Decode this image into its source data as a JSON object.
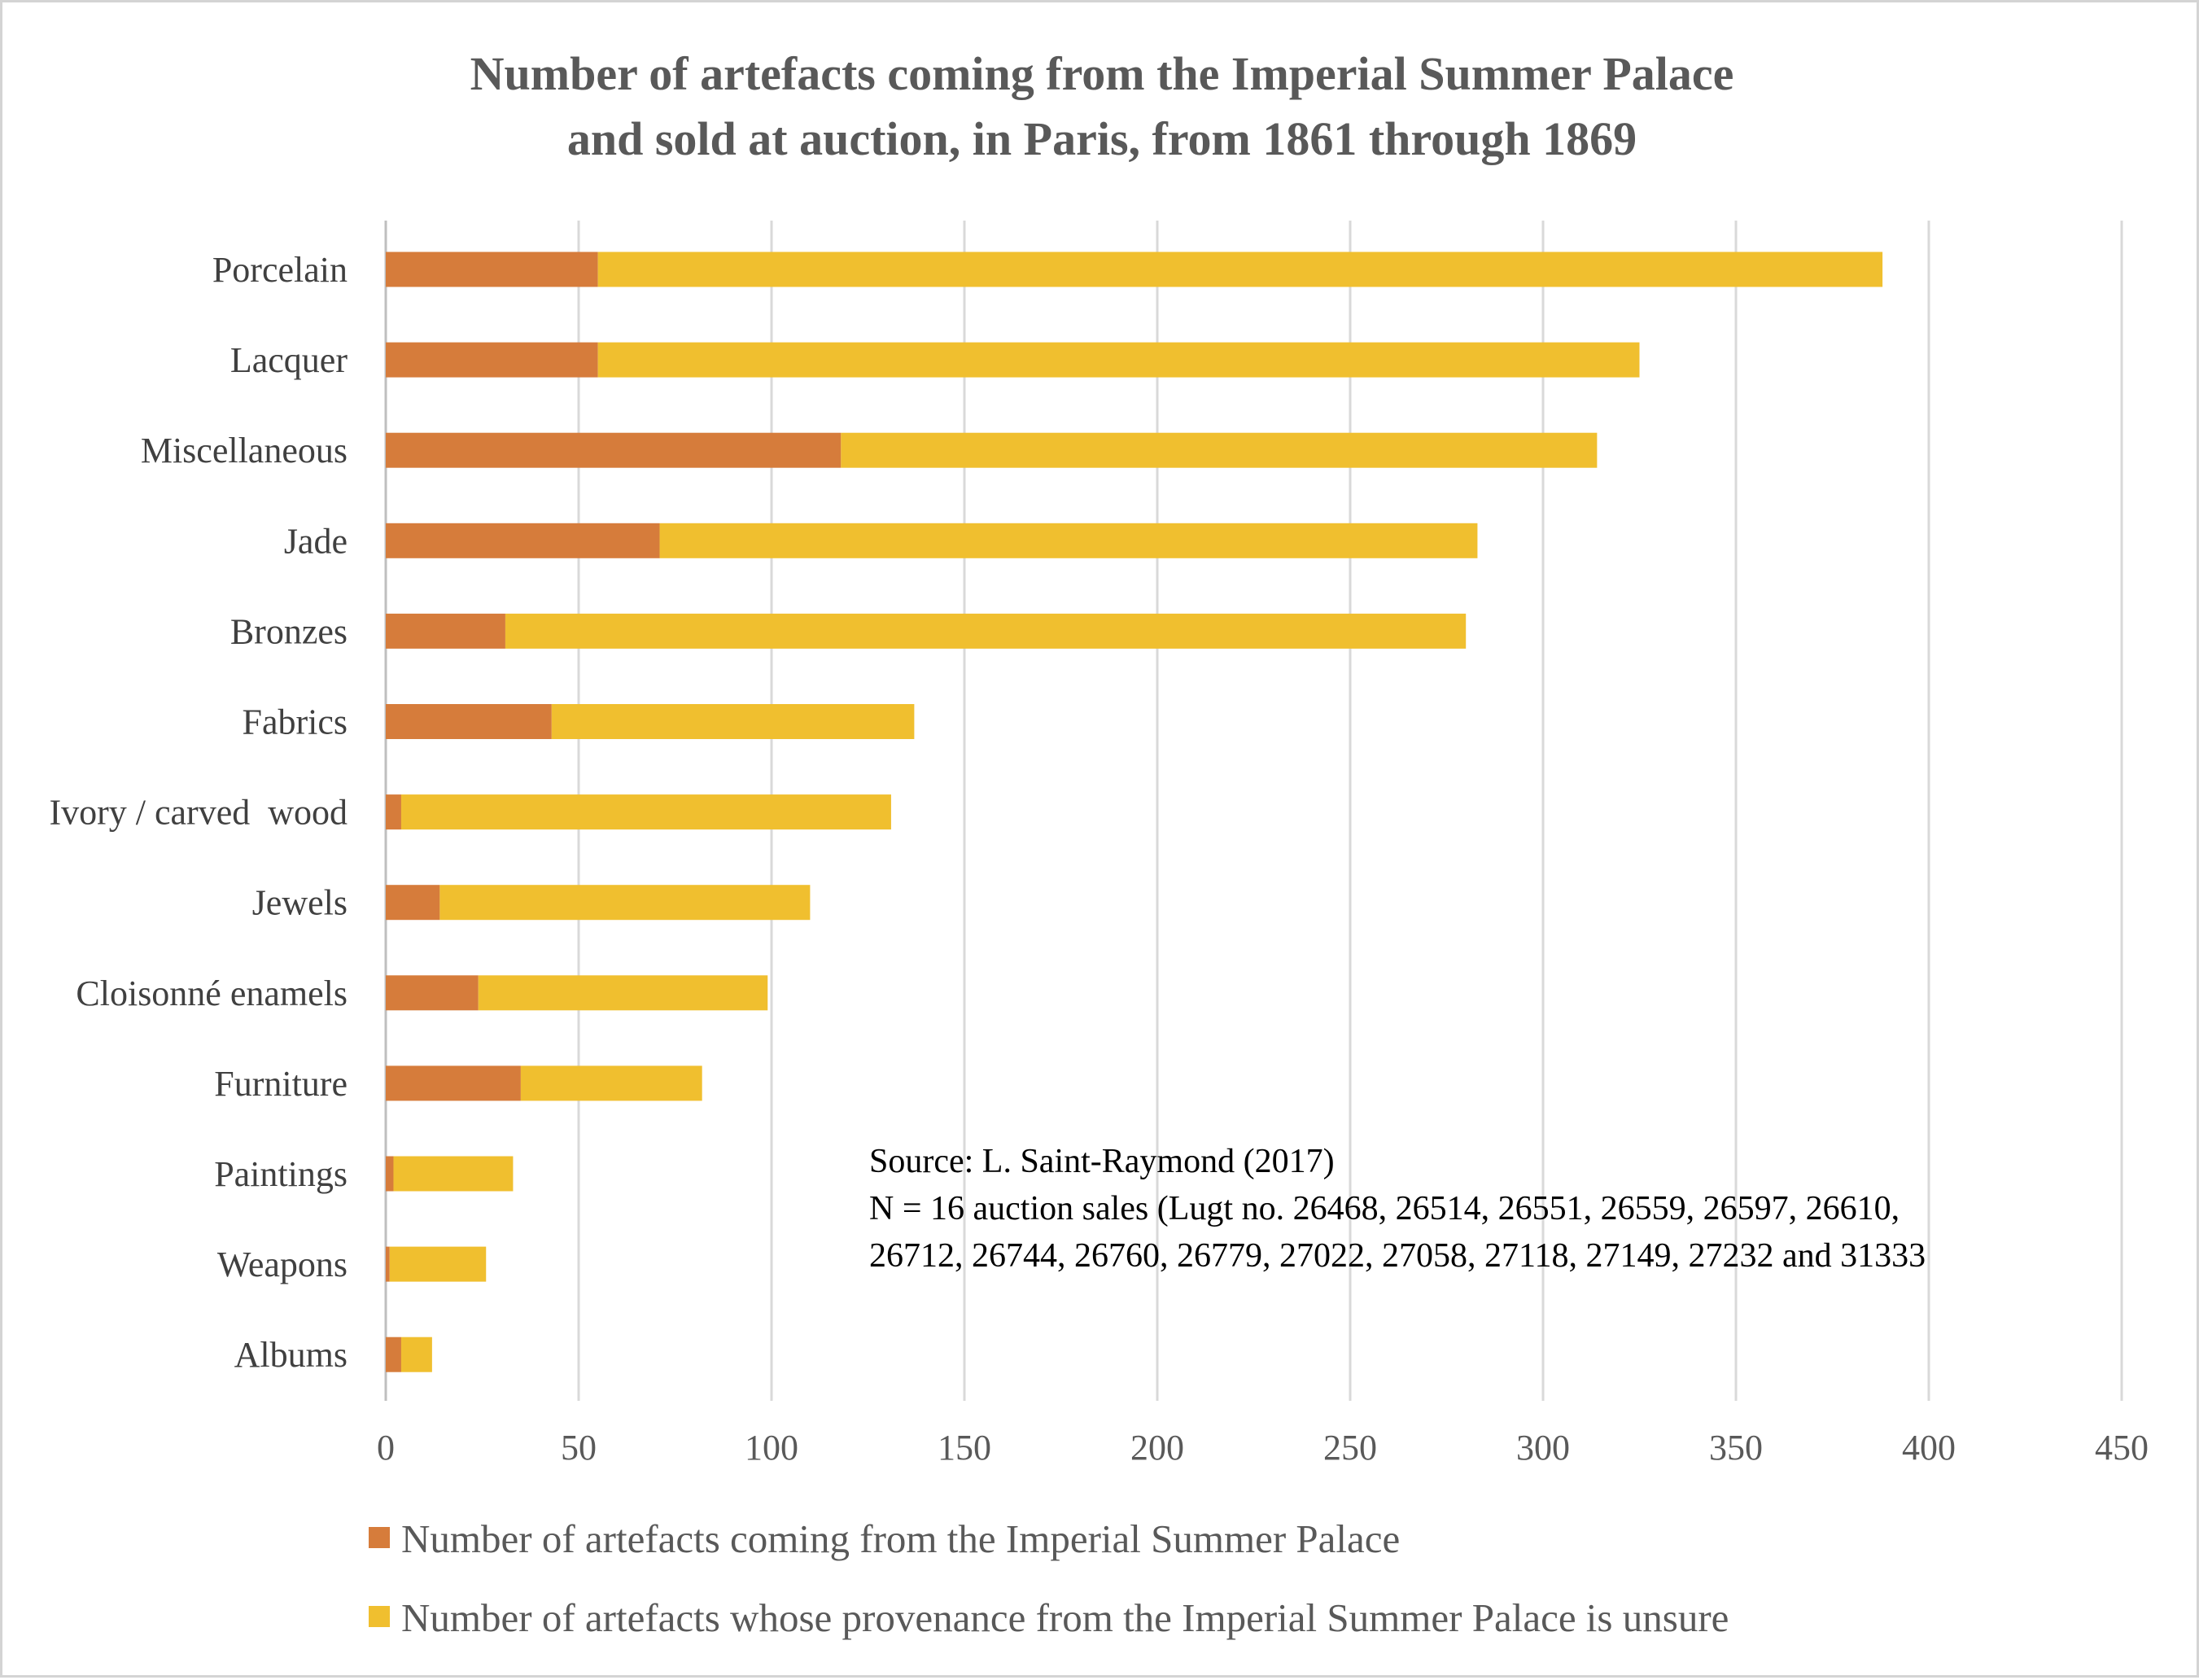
{
  "chart_data": {
    "type": "bar",
    "orientation": "horizontal",
    "stacked": true,
    "title": "Number of artefacts coming from the Imperial Summer Palace and sold at auction, in Paris, from 1861 through 1869",
    "title_lines": [
      "Number of artefacts coming from the Imperial Summer Palace",
      "and sold at auction, in Paris, from 1861 through 1869"
    ],
    "categories": [
      "Porcelain",
      "Lacquer",
      "Miscellaneous",
      "Jade",
      "Bronzes",
      "Fabrics",
      "Ivory / carved  wood",
      "Jewels",
      "Cloisonné enamels",
      "Furniture",
      "Paintings",
      "Weapons",
      "Albums"
    ],
    "series": [
      {
        "name": "Number of artefacts coming from the Imperial Summer Palace",
        "color": "#d67c3b",
        "values": [
          55,
          55,
          118,
          71,
          31,
          43,
          4,
          14,
          24,
          35,
          2,
          1,
          4
        ]
      },
      {
        "name": "Number of artefacts whose provenance from the Imperial Summer Palace is unsure",
        "color": "#f0bf2f",
        "values": [
          333,
          270,
          196,
          212,
          249,
          94,
          127,
          96,
          75,
          47,
          31,
          25,
          8
        ]
      }
    ],
    "xlim": [
      0,
      450
    ],
    "xticks": [
      0,
      50,
      100,
      150,
      200,
      250,
      300,
      350,
      400,
      450
    ],
    "xlabel": "",
    "ylabel": "",
    "grid": "vertical",
    "legend_position": "bottom",
    "annotation": [
      "Source: L. Saint-Raymond (2017)",
      "N = 16 auction sales (Lugt no. 26468, 26514, 26551, 26559, 26597, 26610,",
      "26712, 26744, 26760, 26779, 27022, 27058, 27118, 27149, 27232 and 31333"
    ],
    "colors": {
      "gridline": "#d9d9d9",
      "axis": "#bfbfbf",
      "background": "#ffffff"
    }
  }
}
